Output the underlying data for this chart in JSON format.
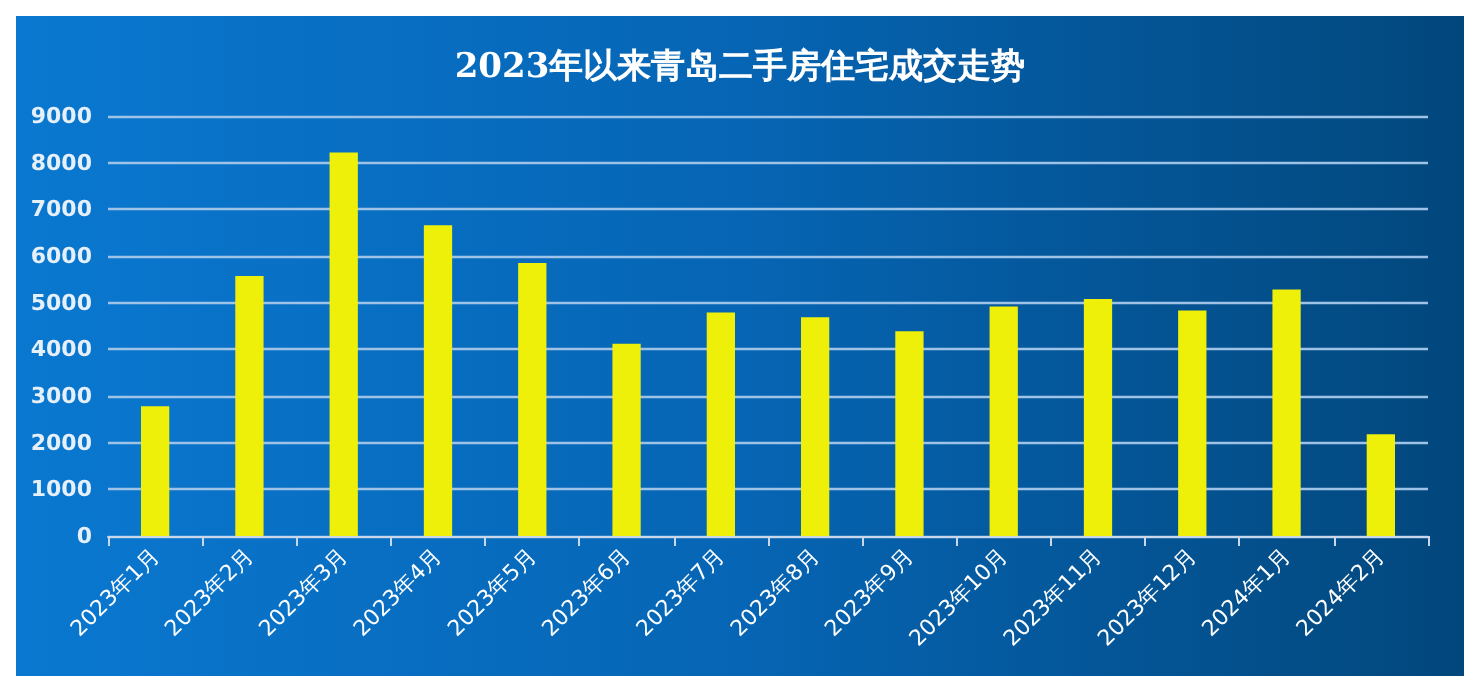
{
  "chart_data": {
    "type": "bar",
    "title": "2023年以来青岛二手房住宅成交走势",
    "categories": [
      "2023年1月",
      "2023年2月",
      "2023年3月",
      "2023年4月",
      "2023年5月",
      "2023年6月",
      "2023年7月",
      "2023年8月",
      "2023年9月",
      "2023年10月",
      "2023年11月",
      "2023年12月",
      "2024年1月",
      "2024年2月"
    ],
    "values": [
      2780,
      5570,
      8220,
      6660,
      5850,
      4120,
      4790,
      4690,
      4390,
      4920,
      5080,
      4830,
      5280,
      2180
    ],
    "color": "#eef00a",
    "ylim": [
      0,
      9000
    ],
    "yticks": [
      0,
      1000,
      2000,
      3000,
      4000,
      5000,
      6000,
      7000,
      8000,
      9000
    ],
    "grid": "y"
  }
}
